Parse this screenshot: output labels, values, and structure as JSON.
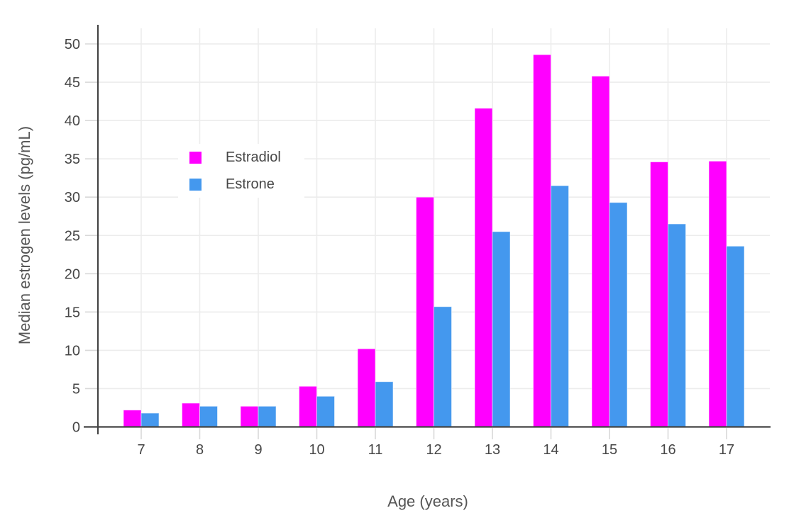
{
  "figure": {
    "x_title": "Age (years)",
    "y_title": "Median estrogen levels (pg/mL)"
  },
  "colors": {
    "background": "#FFFFFF",
    "axis": "#444444",
    "grid": "#ECECEC",
    "tick_mark": "#D8D8D8",
    "tick_text": "#474747",
    "title_text": "#565656",
    "estradiol": "#FF00FF",
    "estrone": "#4498EE"
  },
  "chart_data": {
    "type": "bar",
    "title": "",
    "xlabel": "Age (years)",
    "ylabel": "Median estrogen levels (pg/mL)",
    "categories": [
      7,
      8,
      9,
      10,
      11,
      12,
      13,
      14,
      15,
      16,
      17
    ],
    "series": [
      {
        "name": "Estradiol",
        "color": "#FF00FF",
        "values": [
          2.2,
          3.1,
          2.7,
          5.3,
          10.2,
          30.0,
          41.6,
          48.6,
          45.8,
          34.6,
          34.7
        ]
      },
      {
        "name": "Estrone",
        "color": "#4498EE",
        "values": [
          1.8,
          2.7,
          2.7,
          4.0,
          5.9,
          15.7,
          25.5,
          31.5,
          29.3,
          26.5,
          23.6
        ]
      }
    ],
    "ylim": [
      0,
      52.5
    ],
    "yticks": [
      0,
      5,
      10,
      15,
      20,
      25,
      30,
      35,
      40,
      45,
      50
    ],
    "grid": true,
    "legend_position": "inside-top-left",
    "bar_mode": "grouped"
  }
}
